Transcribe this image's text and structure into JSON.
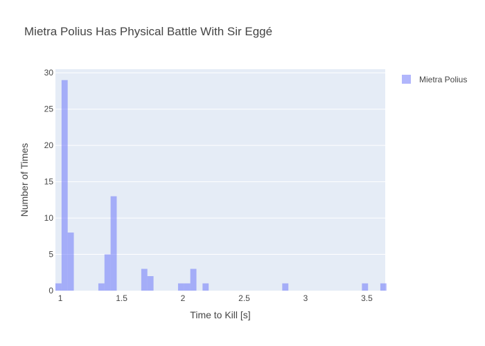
{
  "chart_data": {
    "type": "bar",
    "title": "Mietra Polius Has Physical Battle With Sir Eggé",
    "xlabel": "Time to Kill [s]",
    "ylabel": "Number of Times",
    "xlim": [
      0.96,
      3.65
    ],
    "ylim": [
      0,
      30.5
    ],
    "xticks": [
      1,
      1.5,
      2,
      2.5,
      3,
      3.5
    ],
    "xtick_labels": [
      "1",
      "1.5",
      "2",
      "2.5",
      "3",
      "3.5"
    ],
    "yticks": [
      0,
      5,
      10,
      15,
      20,
      25,
      30
    ],
    "ytick_labels": [
      "0",
      "5",
      "10",
      "15",
      "20",
      "25",
      "30"
    ],
    "bin_width": 0.05,
    "bin_start": [
      0.96,
      1.01,
      1.06,
      1.31,
      1.36,
      1.41,
      1.66,
      1.71,
      1.96,
      2.01,
      2.06,
      2.16,
      2.81,
      3.46,
      3.61
    ],
    "values": [
      1,
      29,
      8,
      1,
      5,
      13,
      3,
      2,
      1,
      1,
      3,
      1,
      1,
      1,
      1
    ],
    "grid": true,
    "legend_position": "top-right",
    "series": [
      {
        "name": "Mietra Polius",
        "color": "#636efa"
      }
    ],
    "background_color": "#e5ecf6"
  }
}
